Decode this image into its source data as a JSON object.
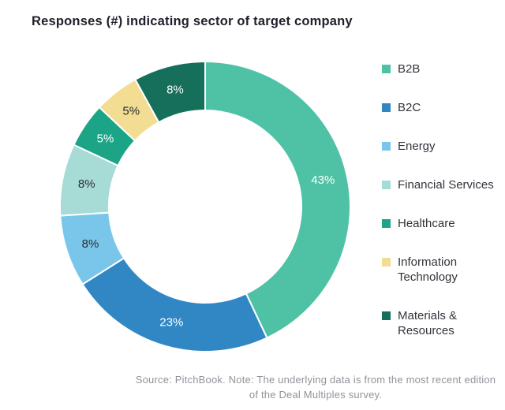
{
  "title": "Responses (#) indicating sector of target company",
  "source_note": "Source: PitchBook. Note: The underlying data is from the most recent edition of the Deal Multiples survey.",
  "chart_data": {
    "type": "pie",
    "subtype": "donut",
    "title": "Responses (#) indicating sector of target company",
    "categories": [
      "B2B",
      "B2C",
      "Energy",
      "Financial Services",
      "Healthcare",
      "Information Technology",
      "Materials & Resources"
    ],
    "values": [
      43,
      23,
      8,
      8,
      5,
      5,
      8
    ],
    "unit": "%",
    "labels": [
      "43%",
      "23%",
      "8%",
      "8%",
      "5%",
      "5%",
      "8%"
    ],
    "colors": [
      "#4FC2A6",
      "#3187C4",
      "#7AC6EA",
      "#A6DBD6",
      "#1CA487",
      "#F2DD92",
      "#156F5B"
    ],
    "label_colors": [
      "#ffffff",
      "#ffffff",
      "#2b2b33",
      "#2b2b33",
      "#ffffff",
      "#2b2b33",
      "#ffffff"
    ],
    "legend_position": "right",
    "start_angle_deg": -90,
    "direction": "clockwise",
    "inner_radius_ratio": 0.66,
    "grid": false
  }
}
